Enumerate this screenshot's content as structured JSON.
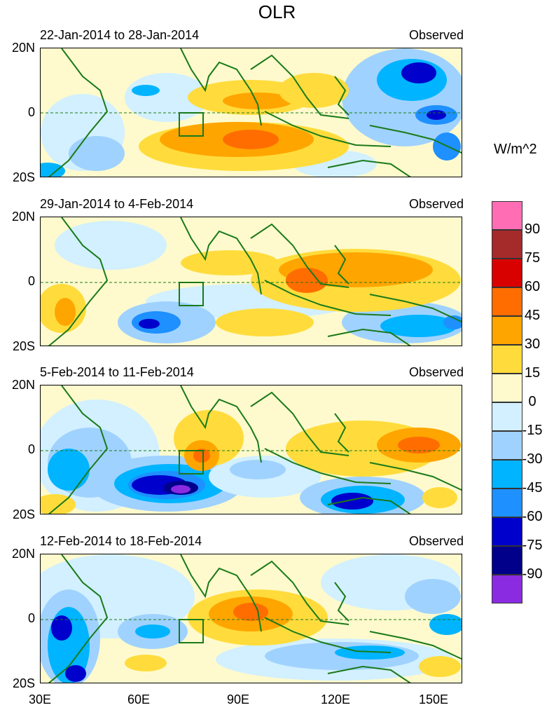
{
  "title": "OLR",
  "units": "W/m^2",
  "panels": [
    {
      "title": "22-Jan-2014 to 28-Jan-2014",
      "label": "Observed"
    },
    {
      "title": "29-Jan-2014 to 4-Feb-2014",
      "label": "Observed"
    },
    {
      "title": "5-Feb-2014 to 11-Feb-2014",
      "label": "Observed"
    },
    {
      "title": "12-Feb-2014 to 18-Feb-2014",
      "label": "Observed"
    }
  ],
  "lat_labels": [
    "20N",
    "0",
    "20S"
  ],
  "lon_labels": [
    "30E",
    "60E",
    "90E",
    "120E",
    "150E"
  ],
  "colorbar": {
    "labels": [
      "90",
      "75",
      "60",
      "45",
      "30",
      "15",
      "0",
      "-15",
      "-30",
      "-45",
      "-60",
      "-75",
      "-90"
    ],
    "colors": [
      "#ff6eb4",
      "#a52a2a",
      "#d90000",
      "#ff6d00",
      "#ffa500",
      "#ffdc3c",
      "#fffacd",
      "#d2f0ff",
      "#a0d2ff",
      "#00b4ff",
      "#1e90ff",
      "#0000cd",
      "#00008b",
      "#8a2be2"
    ]
  }
}
